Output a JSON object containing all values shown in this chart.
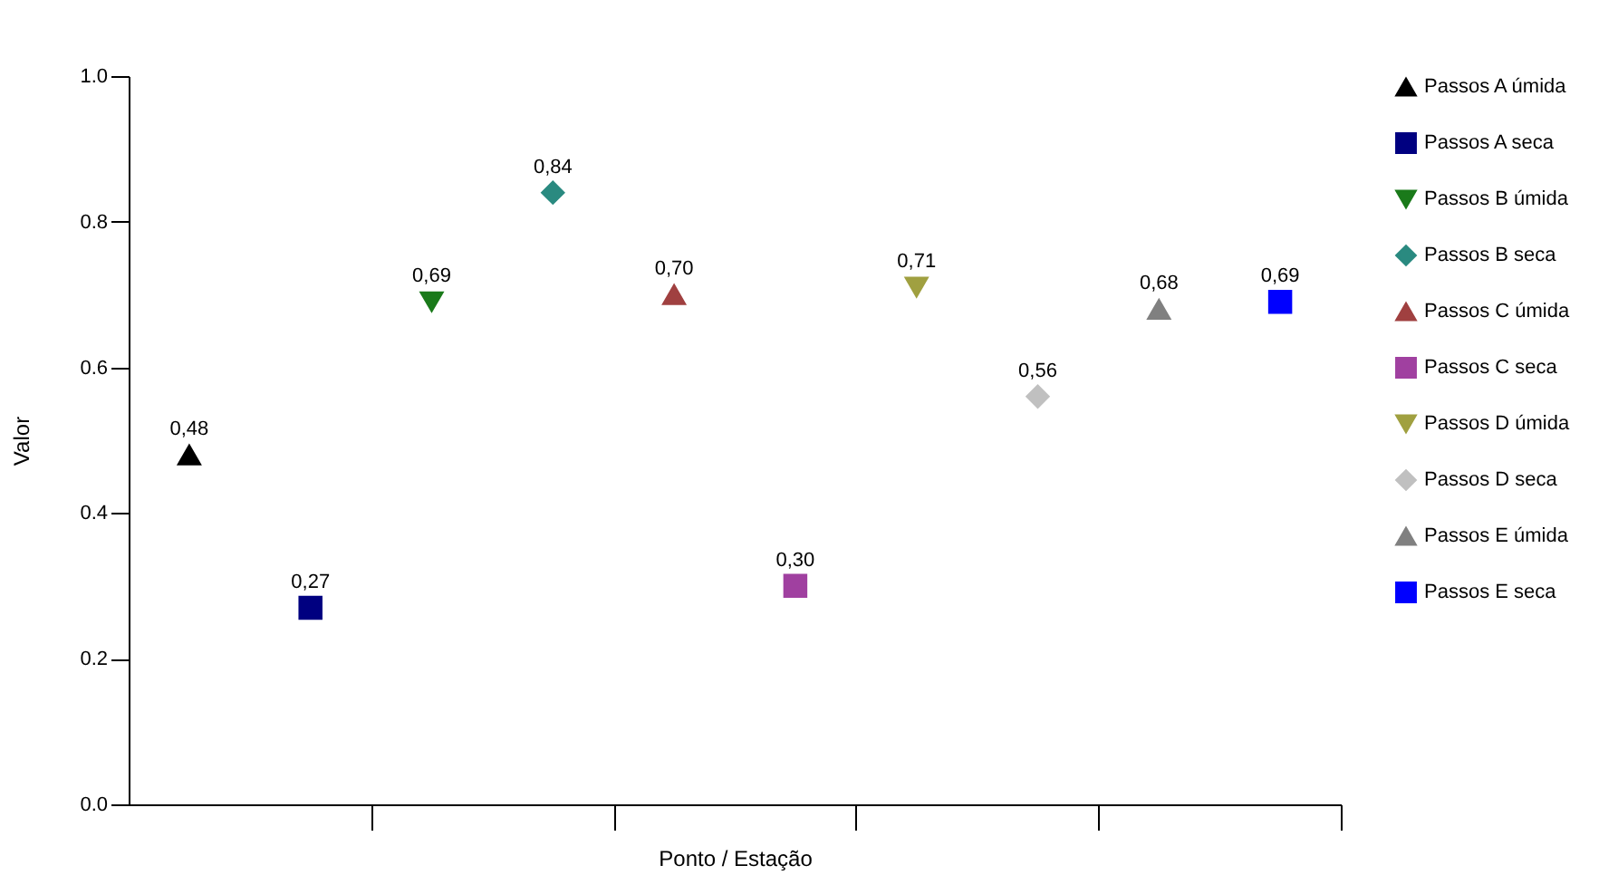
{
  "chart_data": {
    "type": "scatter",
    "xlabel": "Ponto / Estação",
    "ylabel": "Valor",
    "categories": [
      null,
      null,
      null,
      null,
      null,
      null,
      null,
      null,
      null,
      null
    ],
    "ylim": [
      0,
      1
    ],
    "yticks": [
      {
        "value": 0,
        "label": "0.0"
      },
      {
        "value": 0.2,
        "label": "0.2"
      },
      {
        "value": 0.4,
        "label": "0.4"
      },
      {
        "value": 0.6,
        "label": "0.6"
      },
      {
        "value": 0.8,
        "label": "0.8"
      },
      {
        "value": 1,
        "label": "1.0"
      }
    ],
    "tick_labels": "y",
    "grid": false,
    "legend": "right",
    "series": [
      {
        "name": "Passos A úmida",
        "color": "#000000",
        "marker": "triangle",
        "values": [
          0.48,
          null,
          null,
          null,
          null,
          null,
          null,
          null,
          null,
          null
        ],
        "value_labels": [
          "0,48",
          null,
          null,
          null,
          null,
          null,
          null,
          null,
          null,
          null
        ]
      },
      {
        "name": "Passos A seca",
        "color": "#000080",
        "marker": "square",
        "values": [
          null,
          0.27,
          null,
          null,
          null,
          null,
          null,
          null,
          null,
          null
        ],
        "value_labels": [
          null,
          "0,27",
          null,
          null,
          null,
          null,
          null,
          null,
          null,
          null
        ]
      },
      {
        "name": "Passos B úmida",
        "color": "#1a7a1a",
        "marker": "triangle-down",
        "values": [
          null,
          null,
          0.69,
          null,
          null,
          null,
          null,
          null,
          null,
          null
        ],
        "value_labels": [
          null,
          null,
          "0,69",
          null,
          null,
          null,
          null,
          null,
          null,
          null
        ]
      },
      {
        "name": "Passos B seca",
        "color": "#2a8a80",
        "marker": "diamond",
        "values": [
          null,
          null,
          null,
          0.84,
          null,
          null,
          null,
          null,
          null,
          null
        ],
        "value_labels": [
          null,
          null,
          null,
          "0,84",
          null,
          null,
          null,
          null,
          null,
          null
        ]
      },
      {
        "name": "Passos C úmida",
        "color": "#a04040",
        "marker": "triangle",
        "values": [
          null,
          null,
          null,
          null,
          0.7,
          null,
          null,
          null,
          null,
          null
        ],
        "value_labels": [
          null,
          null,
          null,
          null,
          "0,70",
          null,
          null,
          null,
          null,
          null
        ]
      },
      {
        "name": "Passos C seca",
        "color": "#a040a0",
        "marker": "square",
        "values": [
          null,
          null,
          null,
          null,
          null,
          0.3,
          null,
          null,
          null,
          null
        ],
        "value_labels": [
          null,
          null,
          null,
          null,
          null,
          "0,30",
          null,
          null,
          null,
          null
        ]
      },
      {
        "name": "Passos D úmida",
        "color": "#a0a040",
        "marker": "triangle-down",
        "values": [
          null,
          null,
          null,
          null,
          null,
          null,
          0.71,
          null,
          null,
          null
        ],
        "value_labels": [
          null,
          null,
          null,
          null,
          null,
          null,
          "0,71",
          null,
          null,
          null
        ]
      },
      {
        "name": "Passos D seca",
        "color": "#c0c0c0",
        "marker": "diamond",
        "values": [
          null,
          null,
          null,
          null,
          null,
          null,
          null,
          0.56,
          null,
          null
        ],
        "value_labels": [
          null,
          null,
          null,
          null,
          null,
          null,
          null,
          "0,56",
          null,
          null
        ]
      },
      {
        "name": "Passos E úmida",
        "color": "#808080",
        "marker": "triangle",
        "values": [
          null,
          null,
          null,
          null,
          null,
          null,
          null,
          null,
          0.68,
          null
        ],
        "value_labels": [
          null,
          null,
          null,
          null,
          null,
          null,
          null,
          null,
          "0,68",
          null
        ]
      },
      {
        "name": "Passos E seca",
        "color": "#0000ff",
        "marker": "square",
        "values": [
          null,
          null,
          null,
          null,
          null,
          null,
          null,
          null,
          null,
          0.69
        ],
        "value_labels": [
          null,
          null,
          null,
          null,
          null,
          null,
          null,
          null,
          null,
          "0,69"
        ]
      }
    ]
  }
}
